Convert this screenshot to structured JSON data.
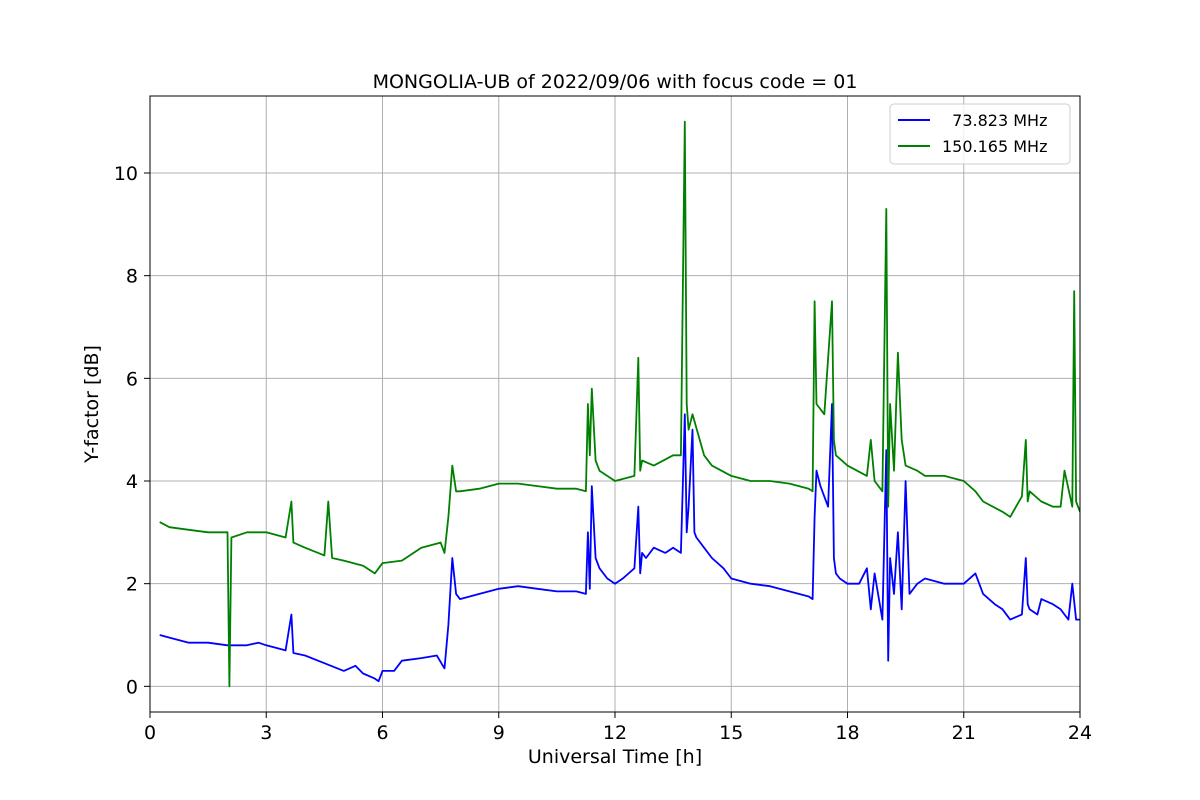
{
  "chart_data": {
    "type": "line",
    "title": "MONGOLIA-UB of 2022/09/06 with focus code = 01",
    "xlabel": "Universal Time [h]",
    "ylabel": "Y-factor [dB]",
    "xlim": [
      0,
      24
    ],
    "ylim": [
      -0.5,
      11.5
    ],
    "xticks": [
      0,
      3,
      6,
      9,
      12,
      15,
      18,
      21,
      24
    ],
    "yticks": [
      0,
      2,
      4,
      6,
      8,
      10
    ],
    "grid": true,
    "legend_position": "top-right",
    "series": [
      {
        "name": "  73.823 MHz",
        "color": "#0000ff",
        "x": [
          0.25,
          0.5,
          1.0,
          1.5,
          2.0,
          2.5,
          2.8,
          3.0,
          3.5,
          3.65,
          3.7,
          4.0,
          4.5,
          5.0,
          5.3,
          5.5,
          5.8,
          5.9,
          6.0,
          6.3,
          6.5,
          7.0,
          7.4,
          7.6,
          7.7,
          7.8,
          7.9,
          8.0,
          8.5,
          9.0,
          9.5,
          10.0,
          10.5,
          11.0,
          11.25,
          11.3,
          11.35,
          11.4,
          11.5,
          11.6,
          11.8,
          12.0,
          12.2,
          12.5,
          12.6,
          12.65,
          12.7,
          12.8,
          13.0,
          13.3,
          13.5,
          13.7,
          13.8,
          13.85,
          13.9,
          14.0,
          14.05,
          14.1,
          14.3,
          14.5,
          14.8,
          15.0,
          15.5,
          16.0,
          16.5,
          17.0,
          17.1,
          17.15,
          17.2,
          17.3,
          17.5,
          17.6,
          17.65,
          17.7,
          17.8,
          18.0,
          18.3,
          18.5,
          18.6,
          18.7,
          18.9,
          19.0,
          19.05,
          19.1,
          19.2,
          19.3,
          19.4,
          19.5,
          19.6,
          19.8,
          20.0,
          20.5,
          21.0,
          21.3,
          21.5,
          21.8,
          22.0,
          22.2,
          22.5,
          22.6,
          22.65,
          22.7,
          22.9,
          23.0,
          23.3,
          23.5,
          23.6,
          23.7,
          23.8,
          23.9,
          24.0
        ],
        "y": [
          1.0,
          0.95,
          0.85,
          0.85,
          0.8,
          0.8,
          0.85,
          0.8,
          0.7,
          1.4,
          0.65,
          0.6,
          0.45,
          0.3,
          0.4,
          0.25,
          0.15,
          0.1,
          0.3,
          0.3,
          0.5,
          0.55,
          0.6,
          0.35,
          1.2,
          2.5,
          1.8,
          1.7,
          1.8,
          1.9,
          1.95,
          1.9,
          1.85,
          1.85,
          1.8,
          3.0,
          1.9,
          3.9,
          2.5,
          2.3,
          2.1,
          2.0,
          2.1,
          2.3,
          3.5,
          2.2,
          2.6,
          2.5,
          2.7,
          2.6,
          2.7,
          2.6,
          5.3,
          3.0,
          3.5,
          5.0,
          3.0,
          2.9,
          2.7,
          2.5,
          2.3,
          2.1,
          2.0,
          1.95,
          1.85,
          1.75,
          1.7,
          3.3,
          4.2,
          3.9,
          3.5,
          5.5,
          2.5,
          2.2,
          2.1,
          2.0,
          2.0,
          2.3,
          1.5,
          2.2,
          1.3,
          4.6,
          0.5,
          2.5,
          1.8,
          3.0,
          1.5,
          4.0,
          1.8,
          2.0,
          2.1,
          2.0,
          2.0,
          2.2,
          1.8,
          1.6,
          1.5,
          1.3,
          1.4,
          2.5,
          1.6,
          1.5,
          1.4,
          1.7,
          1.6,
          1.5,
          1.4,
          1.3,
          2.0,
          1.3,
          1.3
        ]
      },
      {
        "name": "150.165 MHz",
        "color": "#008000",
        "x": [
          0.25,
          0.5,
          1.0,
          1.5,
          2.0,
          2.05,
          2.1,
          2.5,
          3.0,
          3.5,
          3.65,
          3.7,
          4.0,
          4.5,
          4.6,
          4.7,
          5.0,
          5.5,
          5.8,
          6.0,
          6.5,
          7.0,
          7.5,
          7.6,
          7.7,
          7.8,
          7.9,
          8.0,
          8.5,
          9.0,
          9.5,
          10.0,
          10.5,
          11.0,
          11.25,
          11.3,
          11.35,
          11.4,
          11.5,
          11.6,
          12.0,
          12.5,
          12.6,
          12.65,
          12.7,
          13.0,
          13.5,
          13.7,
          13.8,
          13.85,
          13.9,
          14.0,
          14.3,
          14.5,
          15.0,
          15.5,
          16.0,
          16.5,
          17.0,
          17.1,
          17.15,
          17.2,
          17.4,
          17.6,
          17.65,
          17.7,
          18.0,
          18.5,
          18.6,
          18.7,
          18.9,
          19.0,
          19.05,
          19.1,
          19.2,
          19.3,
          19.4,
          19.5,
          19.8,
          20.0,
          20.5,
          21.0,
          21.3,
          21.5,
          22.0,
          22.2,
          22.5,
          22.6,
          22.65,
          22.7,
          23.0,
          23.3,
          23.5,
          23.6,
          23.8,
          23.85,
          23.9,
          24.0
        ],
        "y": [
          3.2,
          3.1,
          3.05,
          3.0,
          3.0,
          0.0,
          2.9,
          3.0,
          3.0,
          2.9,
          3.6,
          2.8,
          2.7,
          2.55,
          3.6,
          2.5,
          2.45,
          2.35,
          2.2,
          2.4,
          2.45,
          2.7,
          2.8,
          2.6,
          3.3,
          4.3,
          3.8,
          3.8,
          3.85,
          3.95,
          3.95,
          3.9,
          3.85,
          3.85,
          3.8,
          5.5,
          4.5,
          5.8,
          4.4,
          4.2,
          4.0,
          4.1,
          6.4,
          4.2,
          4.4,
          4.3,
          4.5,
          4.5,
          11.0,
          5.5,
          5.0,
          5.3,
          4.5,
          4.3,
          4.1,
          4.0,
          4.0,
          3.95,
          3.85,
          3.8,
          7.5,
          5.5,
          5.3,
          7.5,
          4.8,
          4.5,
          4.3,
          4.1,
          4.8,
          4.0,
          3.8,
          9.3,
          3.5,
          5.5,
          4.2,
          6.5,
          4.8,
          4.3,
          4.2,
          4.1,
          4.1,
          4.0,
          3.8,
          3.6,
          3.4,
          3.3,
          3.7,
          4.8,
          3.6,
          3.8,
          3.6,
          3.5,
          3.5,
          4.2,
          3.5,
          7.7,
          3.6,
          3.4
        ]
      }
    ]
  }
}
